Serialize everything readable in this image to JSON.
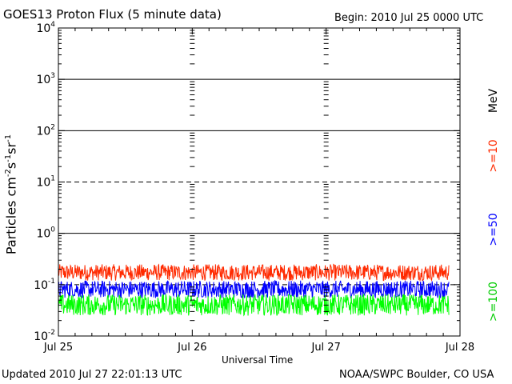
{
  "header": {
    "title": "GOES13 Proton Flux (5 minute data)",
    "begin": "Begin: 2010 Jul 25 0000 UTC"
  },
  "footer": {
    "updated": "Updated 2010 Jul 27 22:01:13 UTC",
    "credit": "NOAA/SWPC Boulder, CO USA"
  },
  "chart_data": {
    "type": "line",
    "title": "GOES13 Proton Flux (5 minute data)",
    "xlabel": "Universal Time",
    "ylabel": "Particles cm-2s-1sr-1",
    "ylabel_parts": {
      "base": "Particles cm",
      "e1": "-2",
      "m1": "s",
      "e2": "-1",
      "m2": "sr",
      "e3": "-1"
    },
    "yscale": "log",
    "ylim": [
      0.01,
      10000
    ],
    "xlim": [
      "2010-07-25",
      "2010-07-28"
    ],
    "x_ticks": [
      "Jul 25",
      "Jul 26",
      "Jul 27",
      "Jul 28"
    ],
    "y_ticks": [
      {
        "value": 0.01,
        "base": "10",
        "exp": "-2"
      },
      {
        "value": 0.1,
        "base": "10",
        "exp": "-1"
      },
      {
        "value": 1,
        "base": "10",
        "exp": "0"
      },
      {
        "value": 10,
        "base": "10",
        "exp": "1"
      },
      {
        "value": 100,
        "base": "10",
        "exp": "2"
      },
      {
        "value": 1000,
        "base": "10",
        "exp": "3"
      },
      {
        "value": 10000,
        "base": "10",
        "exp": "4"
      }
    ],
    "grid": {
      "solid": [
        1,
        100,
        1000
      ],
      "dashed": [
        0.1,
        10
      ]
    },
    "unit_label": "MeV",
    "data_end": "2010-07-27T22:00",
    "series": [
      {
        "name": ">=10",
        "color": "#ff2a00",
        "range": [
          0.12,
          0.25
        ]
      },
      {
        "name": ">=50",
        "color": "#0000ff",
        "range": [
          0.055,
          0.12
        ]
      },
      {
        "name": ">=100",
        "color": "#00ff00",
        "range": [
          0.025,
          0.065
        ]
      }
    ]
  }
}
